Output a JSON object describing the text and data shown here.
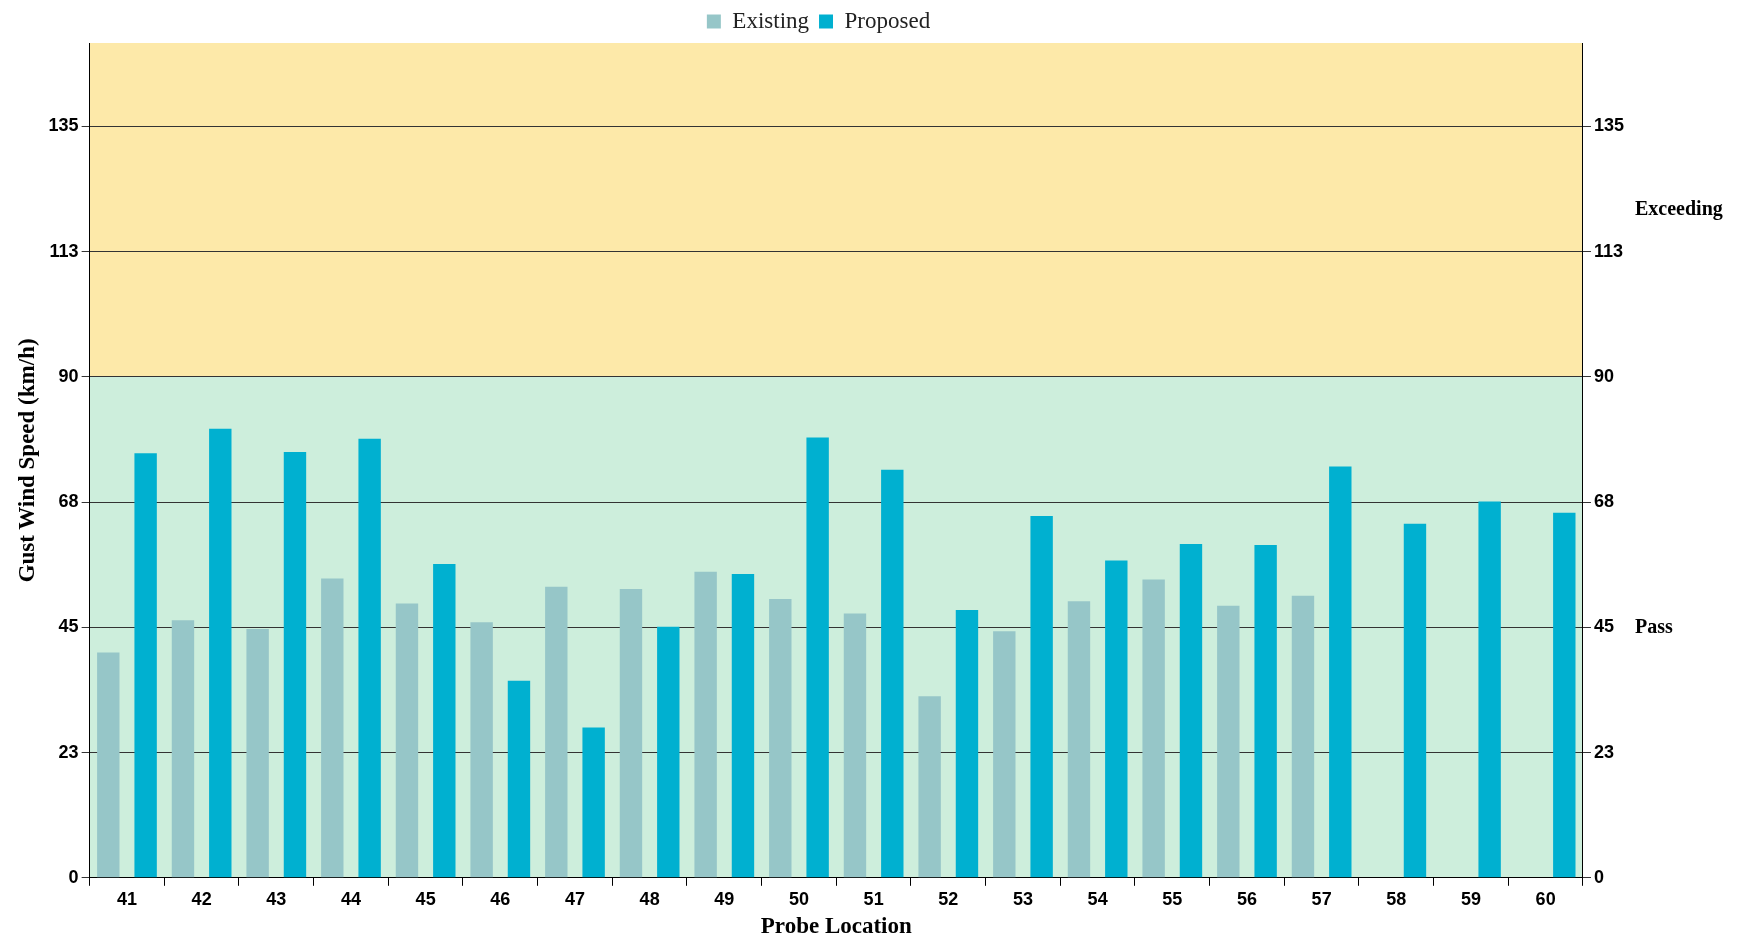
{
  "chart_data": {
    "type": "bar",
    "xlabel": "Probe Location",
    "ylabel": "Gust Wind Speed (km/h)",
    "categories": [
      "41",
      "42",
      "43",
      "44",
      "45",
      "46",
      "47",
      "48",
      "49",
      "50",
      "51",
      "52",
      "53",
      "54",
      "55",
      "56",
      "57",
      "58",
      "59",
      "60"
    ],
    "series": [
      {
        "name": "Existing",
        "color": "#96c6c8",
        "values": [
          40.5,
          46.3,
          44.7,
          53.8,
          49.3,
          45.9,
          52.3,
          51.9,
          55.0,
          50.1,
          47.5,
          32.6,
          44.3,
          49.7,
          53.6,
          48.9,
          50.7,
          null,
          null,
          null
        ]
      },
      {
        "name": "Proposed",
        "color": "#00b0d0",
        "values": [
          76.3,
          80.7,
          76.5,
          78.9,
          56.4,
          35.4,
          27.0,
          45.1,
          54.6,
          79.1,
          73.3,
          48.1,
          65.0,
          57.0,
          60.0,
          59.8,
          73.9,
          63.6,
          67.6,
          65.6
        ]
      }
    ],
    "ylim": [
      0,
      150
    ],
    "yticks": [
      0,
      {
        "value": 22.5,
        "label": "23"
      },
      45,
      {
        "value": 67.5,
        "label": "68"
      },
      90,
      {
        "value": 112.5,
        "label": "113"
      },
      135
    ],
    "y2lim": [
      0,
      150
    ],
    "y2ticks": [
      0,
      {
        "value": 22.5,
        "label": "23"
      },
      45,
      {
        "value": 67.5,
        "label": "68"
      },
      90,
      {
        "value": 112.5,
        "label": "113"
      },
      135
    ],
    "bands": [
      {
        "axis": "y",
        "from": 0,
        "to": 90,
        "label": "Pass",
        "color": "#cdeedc"
      },
      {
        "axis": "y",
        "from": 90,
        "to": 150,
        "label": "Exceeding",
        "color": "#fde9a9"
      }
    ],
    "grid": "y",
    "legend": "top"
  }
}
